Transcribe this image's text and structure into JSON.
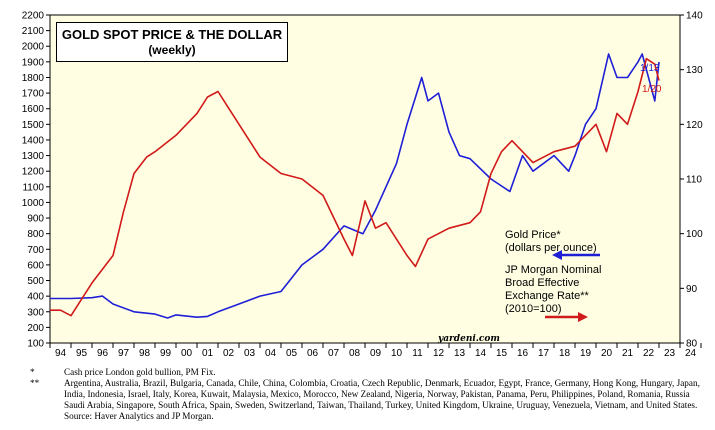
{
  "chart_data": {
    "type": "line",
    "title": "GOLD SPOT PRICE & THE DOLLAR",
    "subtitle": "(weekly)",
    "x_ticks": [
      "94",
      "95",
      "96",
      "97",
      "98",
      "99",
      "00",
      "01",
      "02",
      "03",
      "04",
      "05",
      "06",
      "07",
      "08",
      "09",
      "10",
      "11",
      "12",
      "13",
      "14",
      "15",
      "16",
      "17",
      "18",
      "19",
      "20",
      "21",
      "22",
      "23",
      "24"
    ],
    "xlim": [
      1994,
      2024
    ],
    "y_left": {
      "ticks": [
        100,
        200,
        300,
        400,
        500,
        600,
        700,
        800,
        900,
        1000,
        1100,
        1200,
        1300,
        1400,
        1500,
        1600,
        1700,
        1800,
        1900,
        2000,
        2100,
        2200
      ],
      "ylim": [
        100,
        2200
      ]
    },
    "y_right": {
      "ticks": [
        80,
        90,
        100,
        110,
        120,
        130,
        140
      ],
      "ylim": [
        80,
        140
      ]
    },
    "series": [
      {
        "name": "Gold Price* (dollars per ounce)",
        "axis": "left",
        "color": "#1f1fd6",
        "end_label": "1/13",
        "x": [
          1994,
          1995,
          1996,
          1996.5,
          1997,
          1998,
          1999,
          1999.6,
          2000,
          2001,
          2001.5,
          2002,
          2003,
          2004,
          2005,
          2006,
          2006.5,
          2007,
          2008,
          2008.9,
          2009.5,
          2010,
          2010.5,
          2011,
          2011.7,
          2012,
          2012.5,
          2013,
          2013.5,
          2014,
          2015,
          2015.9,
          2016.5,
          2017,
          2018,
          2018.7,
          2019,
          2019.5,
          2020,
          2020.6,
          2021,
          2021.5,
          2022,
          2022.2,
          2022.8,
          2023
        ],
        "values": [
          385,
          385,
          390,
          400,
          350,
          300,
          285,
          260,
          280,
          265,
          270,
          300,
          350,
          400,
          430,
          600,
          650,
          700,
          850,
          800,
          950,
          1100,
          1250,
          1500,
          1800,
          1650,
          1700,
          1450,
          1300,
          1280,
          1150,
          1070,
          1300,
          1200,
          1300,
          1200,
          1300,
          1500,
          1600,
          1950,
          1800,
          1800,
          1900,
          1950,
          1650,
          1900
        ]
      },
      {
        "name": "JP Morgan Nominal Broad Effective Exchange Rate** (2010=100)",
        "axis": "right",
        "color": "#d11a1a",
        "end_label": "1/20",
        "x": [
          1994,
          1994.5,
          1995,
          1995.5,
          1996,
          1997,
          1997.5,
          1998,
          1998.6,
          1999,
          2000,
          2001,
          2001.5,
          2002,
          2002.5,
          2003,
          2004,
          2005,
          2006,
          2007,
          2008,
          2008.4,
          2009,
          2009.5,
          2010,
          2011,
          2011.4,
          2012,
          2013,
          2014,
          2014.5,
          2015,
          2015.5,
          2016,
          2017,
          2018,
          2019,
          2020,
          2020.5,
          2021,
          2021.5,
          2022,
          2022.4,
          2022.8,
          2023
        ],
        "values": [
          86,
          86,
          85,
          88,
          91,
          96,
          104,
          111,
          114,
          115,
          118,
          122,
          125,
          126,
          123,
          120,
          114,
          111,
          110,
          107,
          99,
          96,
          106,
          101,
          102,
          96,
          94,
          99,
          101,
          102,
          104,
          111,
          115,
          117,
          113,
          115,
          116,
          120,
          115,
          122,
          120,
          126,
          132,
          131,
          128
        ]
      }
    ],
    "legend": {
      "gold_line1": "Gold Price*",
      "gold_line2": "(dollars per ounce)",
      "dollar_line1": "JP Morgan Nominal",
      "dollar_line2": "Broad Effective",
      "dollar_line3": "Exchange Rate**",
      "dollar_line4": "(2010=100)"
    },
    "source_mark": "yardeni.com"
  },
  "notes": {
    "mark1": "*",
    "note1": "Cash price London gold bullion, PM Fix.",
    "mark2": "**",
    "note2": "Argentina, Australia, Brazil, Bulgaria, Canada, Chile, China, Colombia, Croatia, Czech Republic, Denmark, Ecuador, Egypt, France, Germany, Hong Kong, Hungary, Japan, India, Indonesia, Israel, Italy, Korea, Kuwait, Malaysia, Mexico, Morocco, New Zealand, Nigeria, Norway, Pakistan, Panama, Peru, Philippines, Poland, Romania, Russia Saudi Arabia, Singapore, South Africa, Spain, Sweden, Switzerland, Taiwan, Thailand, Turkey, United Kingdom, Ukraine, Uruguay, Venezuela, Vietnam, and United States. Source: Haver Analytics and JP Morgan."
  }
}
